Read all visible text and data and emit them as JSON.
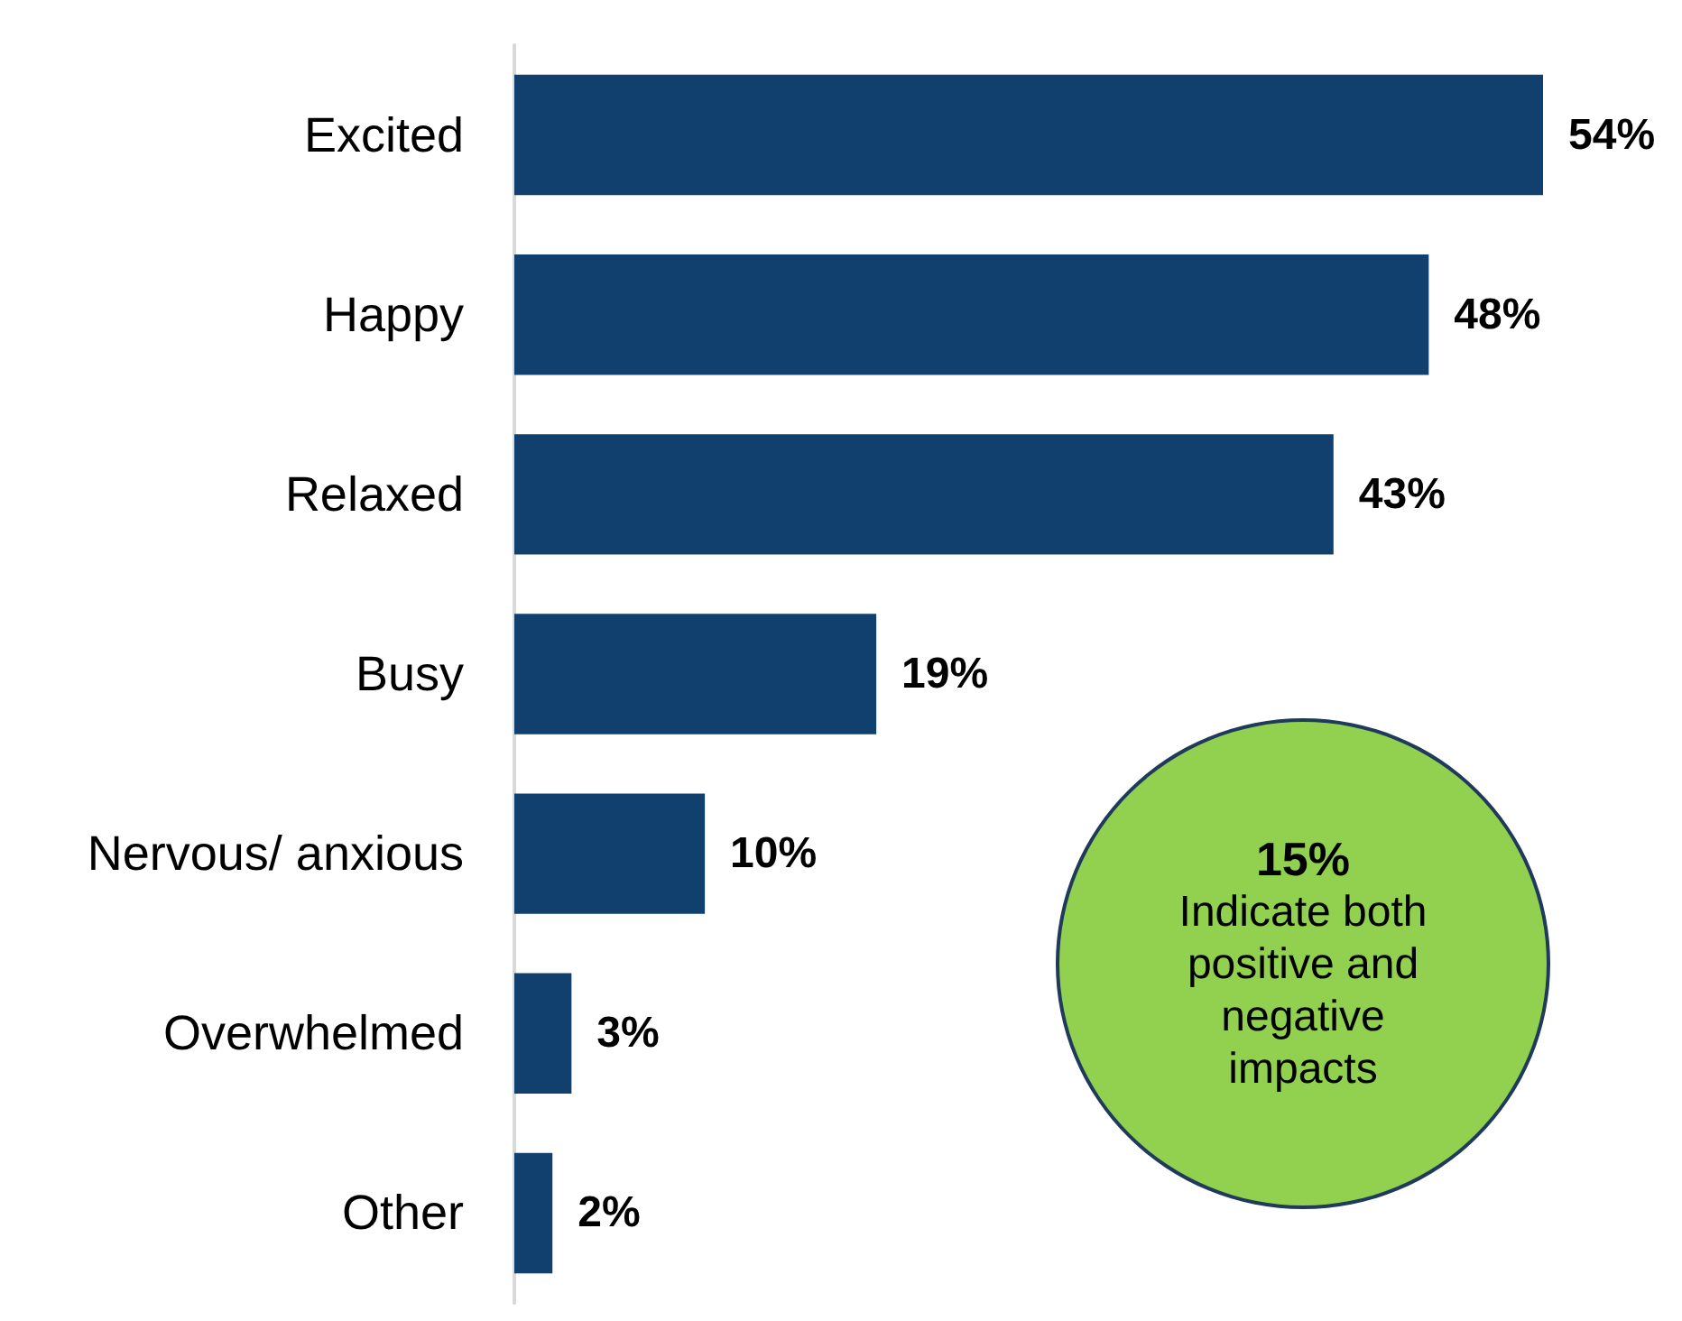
{
  "chart_data": {
    "type": "bar",
    "orientation": "horizontal",
    "categories": [
      "Excited",
      "Happy",
      "Relaxed",
      "Busy",
      "Nervous/ anxious",
      "Overwhelmed",
      "Other"
    ],
    "values": [
      54,
      48,
      43,
      19,
      10,
      3,
      2
    ],
    "value_labels": [
      "54%",
      "48%",
      "43%",
      "19%",
      "10%",
      "3%",
      "2%"
    ],
    "color": "#12406e",
    "annotations": [
      "15%",
      "Indicate both positive and negative impacts"
    ]
  }
}
